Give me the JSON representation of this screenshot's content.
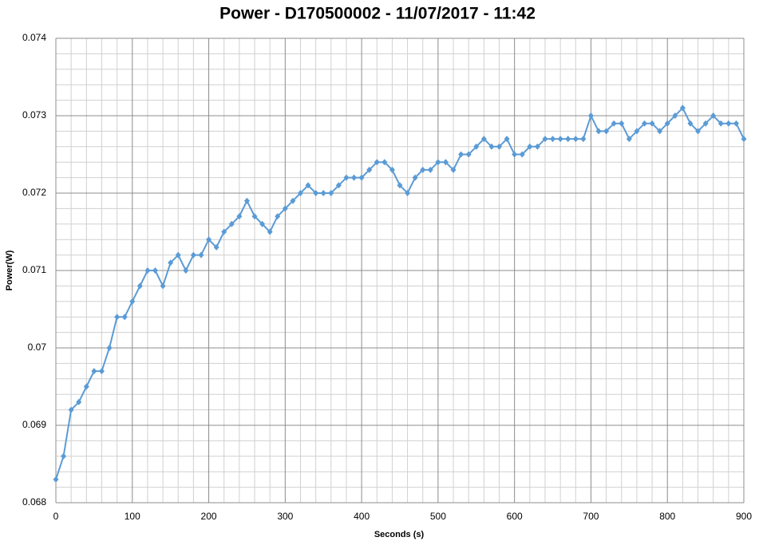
{
  "chart_data": {
    "type": "line",
    "title": "Power - D170500002 - 11/07/2017 - 11:42",
    "x_label": "Seconds (s)",
    "y_label": "Power(W)",
    "x": [
      0,
      10,
      20,
      30,
      40,
      50,
      60,
      70,
      80,
      90,
      100,
      110,
      120,
      130,
      140,
      150,
      160,
      170,
      180,
      190,
      200,
      210,
      220,
      230,
      240,
      250,
      260,
      270,
      280,
      290,
      300,
      310,
      320,
      330,
      340,
      350,
      360,
      370,
      380,
      390,
      400,
      410,
      420,
      430,
      440,
      450,
      460,
      470,
      480,
      490,
      500,
      510,
      520,
      530,
      540,
      550,
      560,
      570,
      580,
      590,
      600,
      610,
      620,
      630,
      640,
      650,
      660,
      670,
      680,
      690,
      700,
      710,
      720,
      730,
      740,
      750,
      760,
      770,
      780,
      790,
      800,
      810,
      820,
      830,
      840,
      850,
      860,
      870,
      880,
      890,
      900
    ],
    "series": [
      {
        "name": "Power",
        "color": "#5b9bd5",
        "values": [
          0.0683,
          0.0686,
          0.0692,
          0.0693,
          0.0695,
          0.0697,
          0.0697,
          0.07,
          0.0704,
          0.0704,
          0.0706,
          0.0708,
          0.071,
          0.071,
          0.0708,
          0.0711,
          0.0712,
          0.071,
          0.0712,
          0.0712,
          0.0714,
          0.0713,
          0.0715,
          0.0716,
          0.0717,
          0.0719,
          0.0717,
          0.0716,
          0.0715,
          0.0717,
          0.0718,
          0.0719,
          0.072,
          0.0721,
          0.072,
          0.072,
          0.072,
          0.0721,
          0.0722,
          0.0722,
          0.0722,
          0.0723,
          0.0724,
          0.0724,
          0.0723,
          0.0721,
          0.072,
          0.0722,
          0.0723,
          0.0723,
          0.0724,
          0.0724,
          0.0723,
          0.0725,
          0.0725,
          0.0726,
          0.0727,
          0.0726,
          0.0726,
          0.0727,
          0.0725,
          0.0725,
          0.0726,
          0.0726,
          0.0727,
          0.0727,
          0.0727,
          0.0727,
          0.0727,
          0.0727,
          0.073,
          0.0728,
          0.0728,
          0.0729,
          0.0729,
          0.0727,
          0.0728,
          0.0729,
          0.0729,
          0.0728,
          0.0729,
          0.073,
          0.0731,
          0.0729,
          0.0728,
          0.0729,
          0.073,
          0.0729,
          0.0729,
          0.0729,
          0.0727
        ]
      }
    ],
    "xlim": [
      0,
      900
    ],
    "xticks": [
      0,
      100,
      200,
      300,
      400,
      500,
      600,
      700,
      800,
      900
    ],
    "ylim": [
      0.068,
      0.074
    ],
    "yticks": [
      0.068,
      0.069,
      0.07,
      0.071,
      0.072,
      0.073,
      0.074
    ],
    "x_minor_ticks": [
      20,
      40,
      60,
      80,
      120,
      140,
      160,
      180,
      220,
      240,
      260,
      280,
      320,
      340,
      360,
      380,
      420,
      440,
      460,
      480,
      520,
      540,
      560,
      580,
      620,
      640,
      660,
      680,
      720,
      740,
      760,
      780,
      820,
      840,
      860,
      880
    ],
    "y_minor_ticks": [
      0.0682,
      0.0684,
      0.0686,
      0.0688,
      0.0692,
      0.0694,
      0.0696,
      0.0698,
      0.0702,
      0.0704,
      0.0706,
      0.0708,
      0.0712,
      0.0714,
      0.0716,
      0.0718,
      0.0722,
      0.0724,
      0.0726,
      0.0728,
      0.0732,
      0.0734,
      0.0736,
      0.0738
    ],
    "grid": true
  }
}
